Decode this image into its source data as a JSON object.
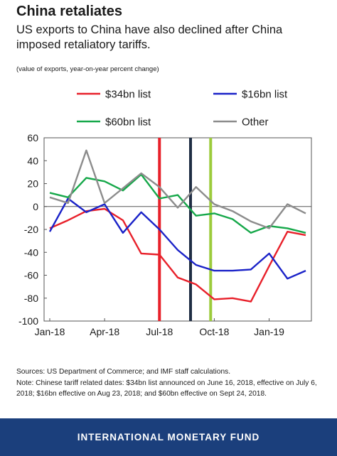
{
  "header": {
    "title": "China retaliates",
    "subtitle": "US exports to China have also declined after China imposed retaliatory tariffs.",
    "units": "(value of exports, year-on-year percent change)"
  },
  "notes": {
    "sources": "Sources: US Department of Commerce; and IMF staff calculations.",
    "note": "Note: Chinese tariff related dates: $34bn list announced on June 16, 2018, effective on July 6, 2018; $16bn effective on Aug 23, 2018; and $60bn effective on Sept 24, 2018."
  },
  "footer": {
    "label": "INTERNATIONAL MONETARY FUND"
  },
  "chart_data": {
    "type": "line",
    "x": [
      "Jan-18",
      "Feb-18",
      "Mar-18",
      "Apr-18",
      "May-18",
      "Jun-18",
      "Jul-18",
      "Aug-18",
      "Sep-18",
      "Oct-18",
      "Nov-18",
      "Dec-18",
      "Jan-19",
      "Feb-19",
      "Mar-19"
    ],
    "x_tick_labels": [
      "Jan-18",
      "Apr-18",
      "Jul-18",
      "Oct-18",
      "Jan-19"
    ],
    "ylim": [
      -100,
      60
    ],
    "y_ticks": [
      60,
      40,
      20,
      0,
      -20,
      -40,
      -60,
      -80,
      -100
    ],
    "grid": false,
    "legend_position": "top",
    "series": [
      {
        "name": "$34bn list",
        "color": "#e8202a",
        "values": [
          -19,
          -12,
          -4,
          -2,
          -12,
          -41,
          -42,
          -62,
          -68,
          -81,
          -80,
          -83,
          -52,
          -22,
          -25
        ]
      },
      {
        "name": "$16bn list",
        "color": "#1a22c8",
        "values": [
          -22,
          7,
          -5,
          2,
          -23,
          -5,
          -20,
          -38,
          -51,
          -56,
          -56,
          -55,
          -41,
          -63,
          -56
        ]
      },
      {
        "name": "$60bn list",
        "color": "#16a84a",
        "values": [
          12,
          8,
          25,
          22,
          14,
          28,
          7,
          10,
          -8,
          -6,
          -11,
          -23,
          -17,
          -19,
          -23
        ]
      },
      {
        "name": "Other",
        "color": "#8c8c8c",
        "values": [
          8,
          3,
          49,
          3,
          16,
          29,
          17,
          -1,
          17,
          2,
          -4,
          -13,
          -19,
          2,
          -6
        ]
      }
    ],
    "vertical_markers": [
      {
        "x": 6.0,
        "color": "#e8202a"
      },
      {
        "x": 7.7,
        "color": "#1f2d44"
      },
      {
        "x": 8.8,
        "color": "#9ccb3b"
      }
    ]
  }
}
